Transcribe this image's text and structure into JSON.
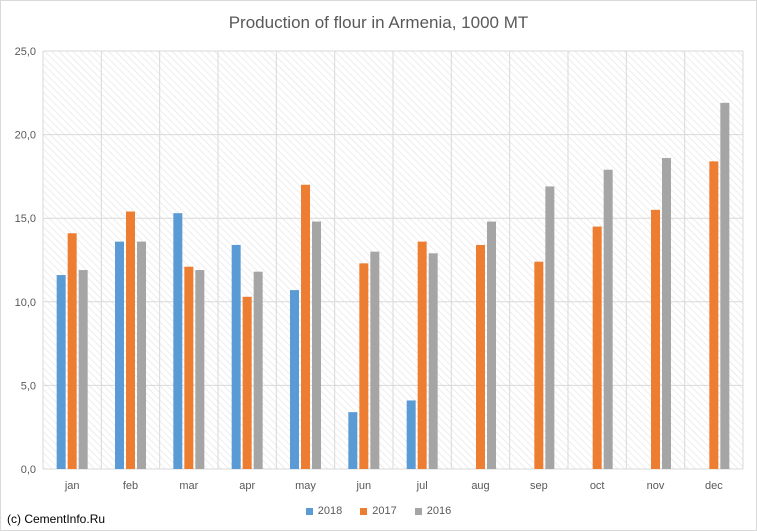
{
  "chart_data": {
    "type": "bar",
    "title": "Production of flour in Armenia, 1000 MT",
    "categories": [
      "jan",
      "feb",
      "mar",
      "apr",
      "may",
      "jun",
      "jul",
      "aug",
      "sep",
      "oct",
      "nov",
      "dec"
    ],
    "series": [
      {
        "name": "2018",
        "color": "#5b9bd5",
        "values": [
          11.6,
          13.6,
          15.3,
          13.4,
          10.7,
          3.4,
          4.1,
          null,
          null,
          null,
          null,
          null
        ]
      },
      {
        "name": "2017",
        "color": "#ed7d31",
        "values": [
          14.1,
          15.4,
          12.1,
          10.3,
          17.0,
          12.3,
          13.6,
          13.4,
          12.4,
          14.5,
          15.5,
          18.4
        ]
      },
      {
        "name": "2016",
        "color": "#a5a5a5",
        "values": [
          11.9,
          13.6,
          11.9,
          11.8,
          14.8,
          13.0,
          12.9,
          14.8,
          16.9,
          17.9,
          18.6,
          21.9
        ]
      }
    ],
    "ylim": [
      0,
      25
    ],
    "yticks": [
      "0,0",
      "5,0",
      "10,0",
      "15,0",
      "20,0",
      "25,0"
    ],
    "xlabel": "",
    "ylabel": "",
    "grid": true,
    "legend_position": "bottom"
  },
  "footer": {
    "credit": "(c) CementInfo.Ru"
  }
}
